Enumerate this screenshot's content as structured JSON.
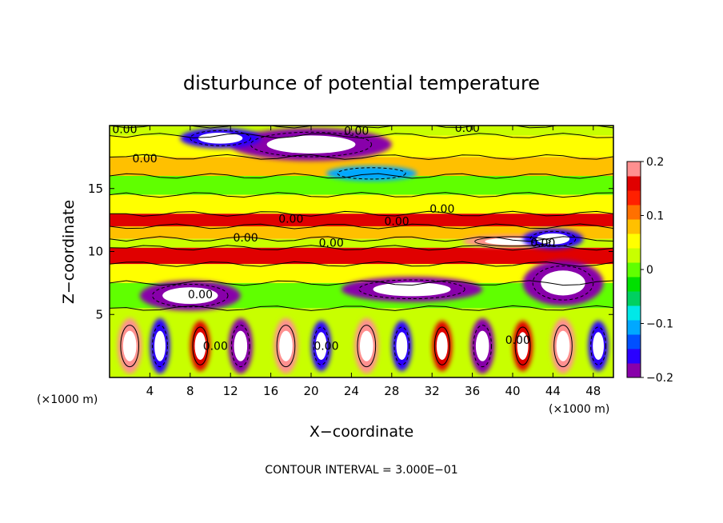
{
  "chart_data": {
    "type": "heatmap",
    "title": "disturbunce of potential temperature",
    "xlabel": "X−coordinate",
    "ylabel": "Z−coordinate",
    "x_unit_label": "(×1000 m)",
    "z_unit_label": "(×1000 m)",
    "xlim": [
      0,
      50
    ],
    "zlim": [
      0,
      20
    ],
    "x_ticks": [
      "4",
      "8",
      "12",
      "16",
      "20",
      "24",
      "28",
      "32",
      "36",
      "40",
      "44",
      "48"
    ],
    "z_ticks": [
      "5",
      "10",
      "15"
    ],
    "colorbar": {
      "range": [
        -0.2,
        0.2
      ],
      "tick_labels": [
        "0.2",
        "0.1",
        "0",
        "−0.1",
        "−0.2"
      ],
      "colors": [
        "#8800aa",
        "#2a00ff",
        "#0050ff",
        "#00a8ff",
        "#00e8e8",
        "#00d060",
        "#00e000",
        "#60ff00",
        "#c8ff00",
        "#ffff00",
        "#ffc000",
        "#ff7000",
        "#ff2000",
        "#e00000",
        "#ff9090"
      ]
    },
    "bands": [
      {
        "z0": 19.2,
        "z1": 20.0,
        "value": 0.02
      },
      {
        "z0": 17.5,
        "z1": 19.2,
        "value": 0.05
      },
      {
        "z0": 16.0,
        "z1": 17.5,
        "value": 0.07
      },
      {
        "z0": 14.5,
        "z1": 16.0,
        "value": 0.0
      },
      {
        "z0": 13.0,
        "z1": 14.5,
        "value": 0.05
      },
      {
        "z0": 12.0,
        "z1": 13.0,
        "value": 0.15
      },
      {
        "z0": 11.0,
        "z1": 12.0,
        "value": 0.08
      },
      {
        "z0": 10.3,
        "z1": 11.0,
        "value": 0.03
      },
      {
        "z0": 9.0,
        "z1": 10.3,
        "value": 0.16
      },
      {
        "z0": 7.5,
        "z1": 9.0,
        "value": 0.04
      },
      {
        "z0": 5.5,
        "z1": 7.5,
        "value": 0.0
      },
      {
        "z0": 0.0,
        "z1": 5.5,
        "value": 0.02
      }
    ],
    "anomalies": [
      {
        "x": 20.0,
        "z": 18.5,
        "rx": 8.0,
        "rz": 1.3,
        "value": -0.19
      },
      {
        "x": 11.0,
        "z": 19.0,
        "rx": 4.0,
        "rz": 0.8,
        "value": -0.16
      },
      {
        "x": 26.0,
        "z": 16.2,
        "rx": 4.5,
        "rz": 0.6,
        "value": -0.1
      },
      {
        "x": 40.0,
        "z": 10.8,
        "rx": 5.0,
        "rz": 0.5,
        "value": 0.18
      },
      {
        "x": 8.0,
        "z": 6.5,
        "rx": 5.0,
        "rz": 1.2,
        "value": -0.19
      },
      {
        "x": 30.0,
        "z": 7.0,
        "rx": 7.0,
        "rz": 1.0,
        "value": -0.19
      },
      {
        "x": 45.0,
        "z": 7.5,
        "rx": 4.0,
        "rz": 1.8,
        "value": -0.19
      },
      {
        "x": 44.0,
        "z": 11.0,
        "rx": 3.0,
        "rz": 0.8,
        "value": -0.17
      },
      {
        "x": 2.0,
        "z": 2.5,
        "rx": 1.2,
        "rz": 2.2,
        "value": 0.18
      },
      {
        "x": 5.0,
        "z": 2.5,
        "rx": 1.0,
        "rz": 2.2,
        "value": -0.17
      },
      {
        "x": 9.0,
        "z": 2.5,
        "rx": 1.0,
        "rz": 2.0,
        "value": 0.17
      },
      {
        "x": 13.0,
        "z": 2.5,
        "rx": 1.2,
        "rz": 2.2,
        "value": -0.18
      },
      {
        "x": 17.5,
        "z": 2.5,
        "rx": 1.2,
        "rz": 2.2,
        "value": 0.18
      },
      {
        "x": 21.0,
        "z": 2.5,
        "rx": 1.0,
        "rz": 2.0,
        "value": -0.17
      },
      {
        "x": 25.5,
        "z": 2.5,
        "rx": 1.2,
        "rz": 2.2,
        "value": 0.18
      },
      {
        "x": 29.0,
        "z": 2.5,
        "rx": 1.0,
        "rz": 2.0,
        "value": -0.17
      },
      {
        "x": 33.0,
        "z": 2.5,
        "rx": 1.0,
        "rz": 2.0,
        "value": 0.17
      },
      {
        "x": 37.0,
        "z": 2.5,
        "rx": 1.2,
        "rz": 2.2,
        "value": -0.18
      },
      {
        "x": 41.0,
        "z": 2.5,
        "rx": 1.0,
        "rz": 2.0,
        "value": 0.17
      },
      {
        "x": 45.0,
        "z": 2.5,
        "rx": 1.2,
        "rz": 2.2,
        "value": 0.18
      },
      {
        "x": 48.5,
        "z": 2.5,
        "rx": 1.0,
        "rz": 2.0,
        "value": -0.17
      }
    ],
    "contour_labels": [
      {
        "text": "0.00",
        "x": 1.5,
        "z": 19.7
      },
      {
        "text": "0.00",
        "x": 24.5,
        "z": 19.6
      },
      {
        "text": "0.00",
        "x": 35.5,
        "z": 19.8
      },
      {
        "text": "0.00",
        "x": 3.5,
        "z": 17.4
      },
      {
        "text": "0.00",
        "x": 33.0,
        "z": 13.4
      },
      {
        "text": "0.00",
        "x": 18.0,
        "z": 12.6
      },
      {
        "text": "0.00",
        "x": 28.5,
        "z": 12.4
      },
      {
        "text": "0.00",
        "x": 13.5,
        "z": 11.1
      },
      {
        "text": "0.00",
        "x": 22.0,
        "z": 10.7
      },
      {
        "text": "0.00",
        "x": 43.0,
        "z": 10.7
      },
      {
        "text": "0.00",
        "x": 9.0,
        "z": 6.6
      },
      {
        "text": "0.00",
        "x": 10.5,
        "z": 2.5
      },
      {
        "text": "0.00",
        "x": 21.5,
        "z": 2.5
      },
      {
        "text": "0.00",
        "x": 40.5,
        "z": 3.0
      }
    ],
    "contour_interval_text": "CONTOUR INTERVAL = 3.000E−01"
  }
}
